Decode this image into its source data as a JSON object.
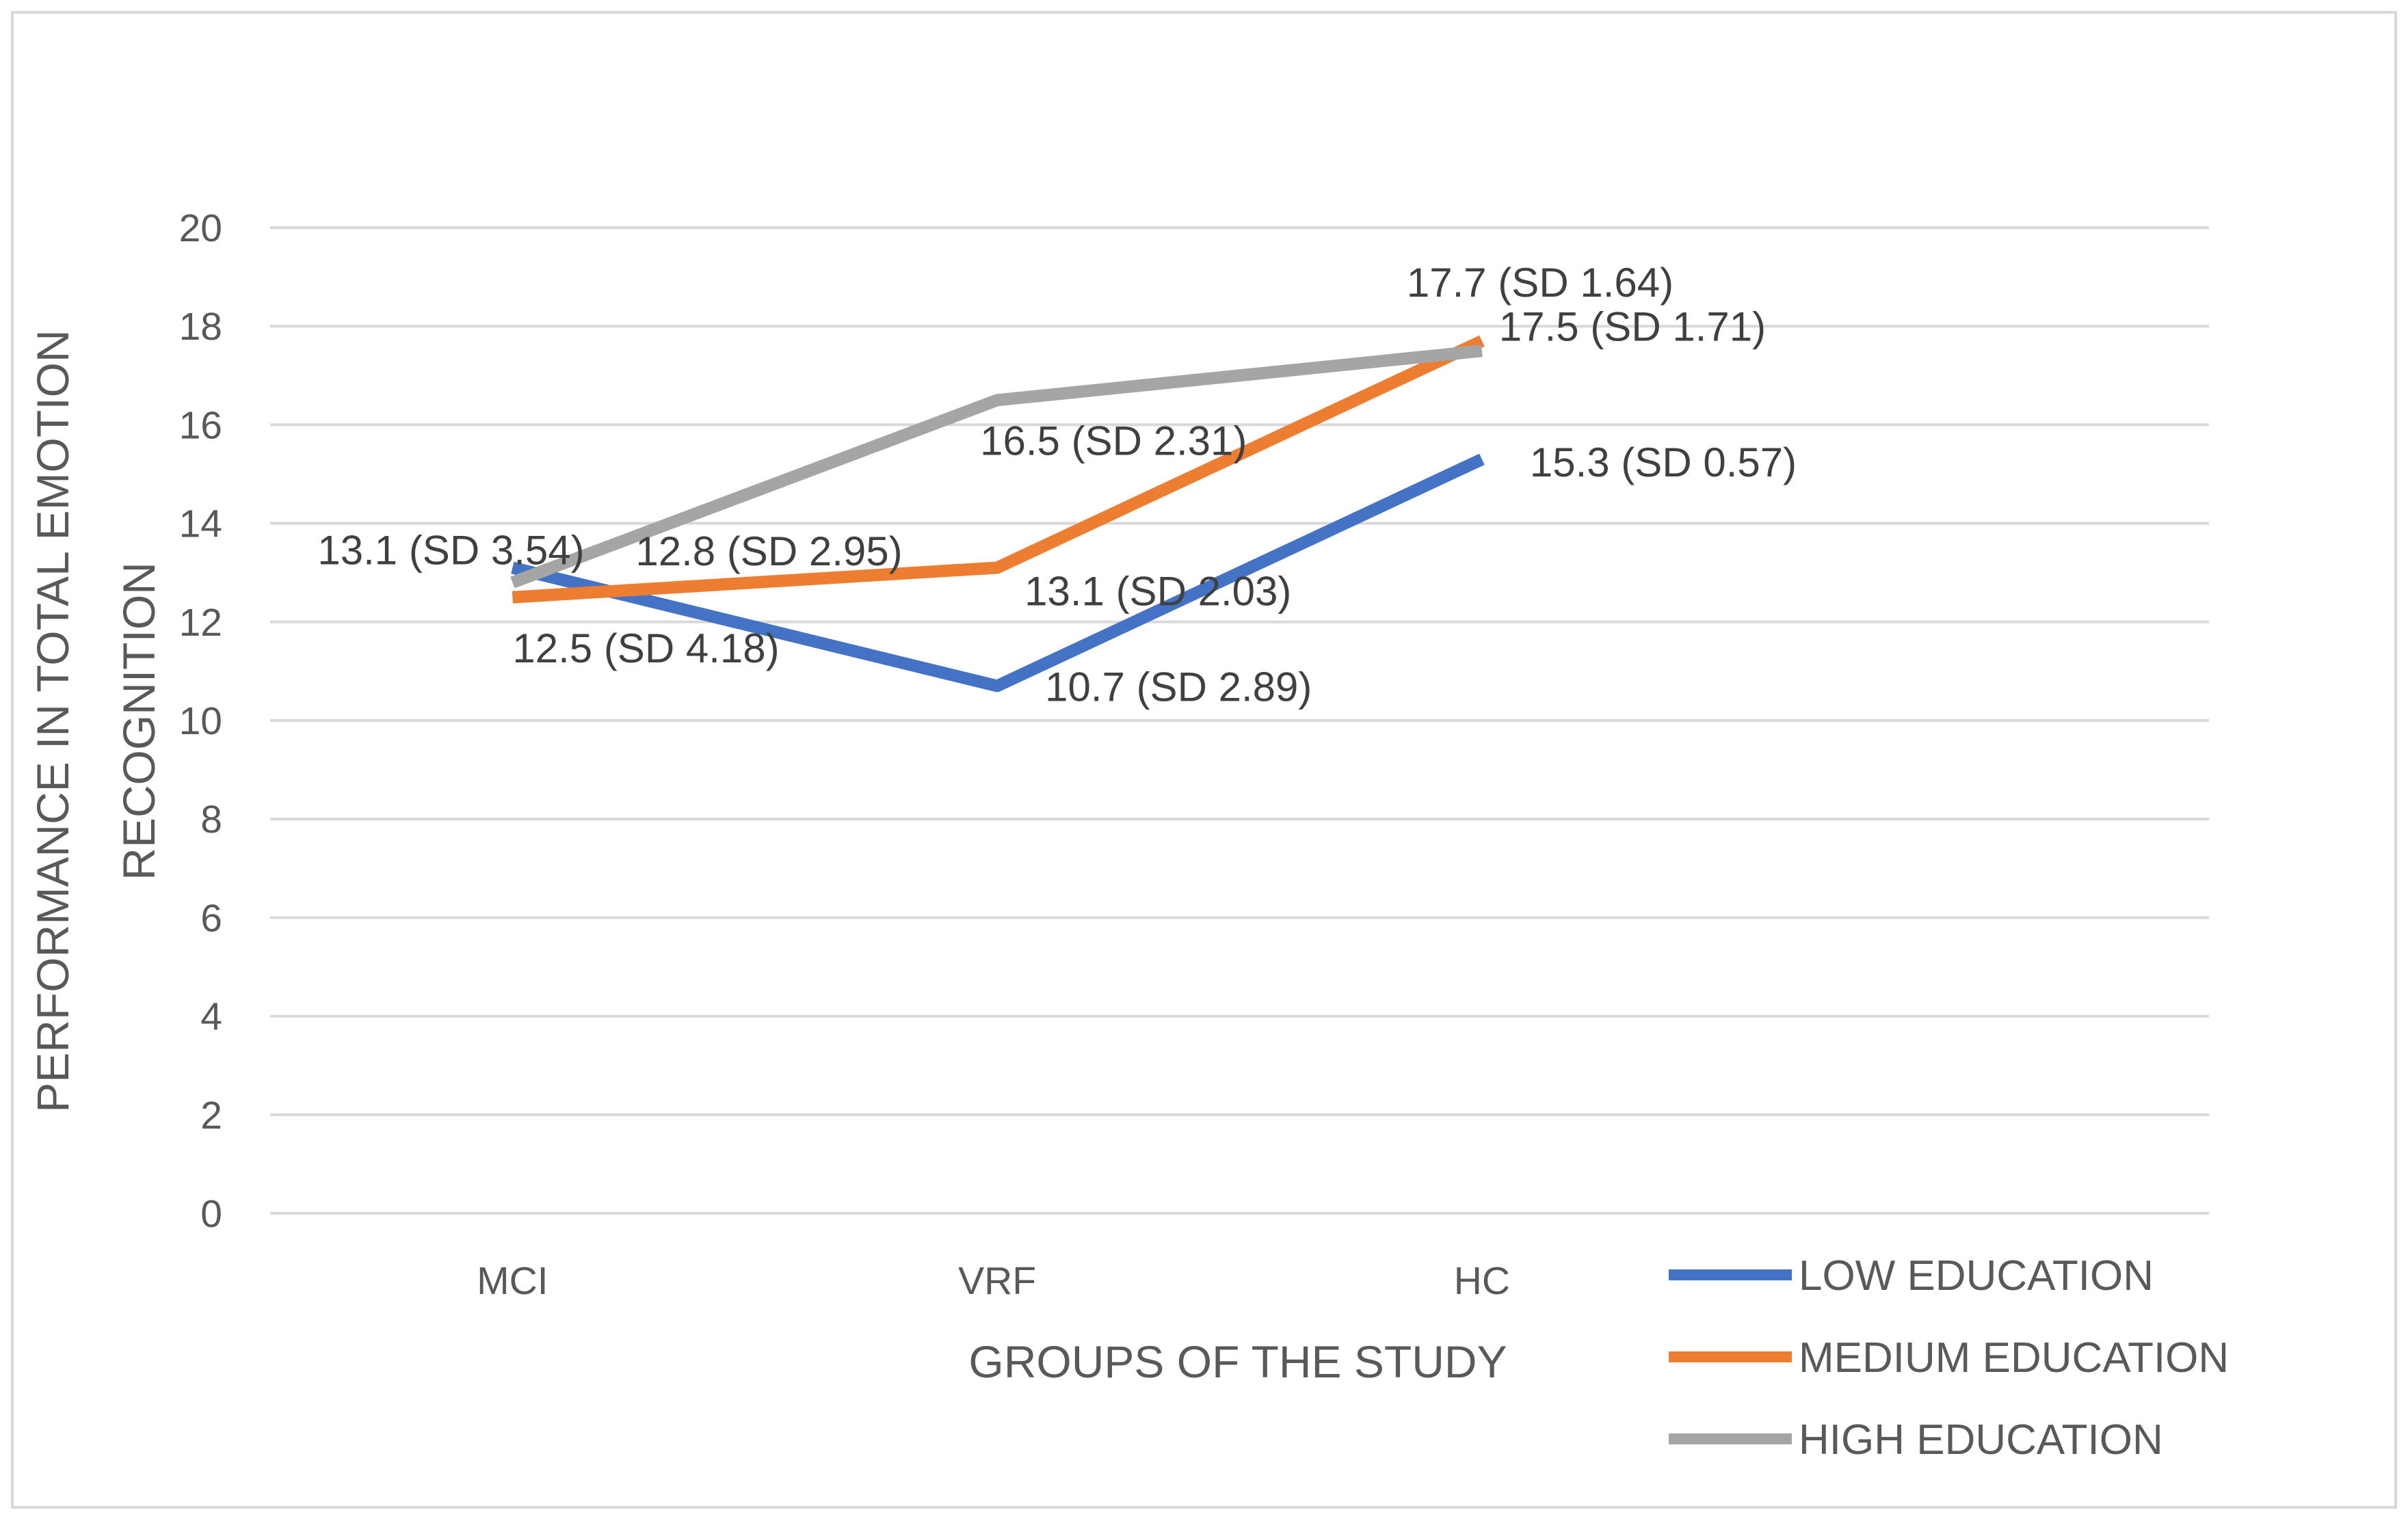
{
  "chart_data": {
    "type": "line",
    "title": "",
    "xlabel": "GROUPS OF THE STUDY",
    "ylabel_lines": [
      "PERFORMANCE IN TOTAL EMOTION",
      "RECOGNITION"
    ],
    "categories": [
      "MCI",
      "VRF",
      "HC"
    ],
    "ylim": [
      0,
      20
    ],
    "yticks": [
      0,
      2,
      4,
      6,
      8,
      10,
      12,
      14,
      16,
      18,
      20
    ],
    "grid": true,
    "legend_position": "bottom-right",
    "series": [
      {
        "name": "LOW EDUCATION",
        "color": "#4472C4",
        "values": [
          13.1,
          10.7,
          15.3
        ],
        "labels": [
          "13.1 (SD 3.54)",
          "10.7 (SD 2.89)",
          "15.3 (SD 0.57)"
        ]
      },
      {
        "name": "MEDIUM EDUCATION",
        "color": "#ED7D31",
        "values": [
          12.5,
          13.1,
          17.7
        ],
        "labels": [
          "12.5 (SD 4.18)",
          "13.1 (SD 2.03)",
          "17.7 (SD 1.64)"
        ]
      },
      {
        "name": "HIGH EDUCATION",
        "color": "#A5A5A5",
        "values": [
          12.8,
          16.5,
          17.5
        ],
        "labels": [
          "12.8 (SD 2.95)",
          "16.5 (SD 2.31)",
          "17.5 (SD 1.71)"
        ]
      }
    ]
  }
}
